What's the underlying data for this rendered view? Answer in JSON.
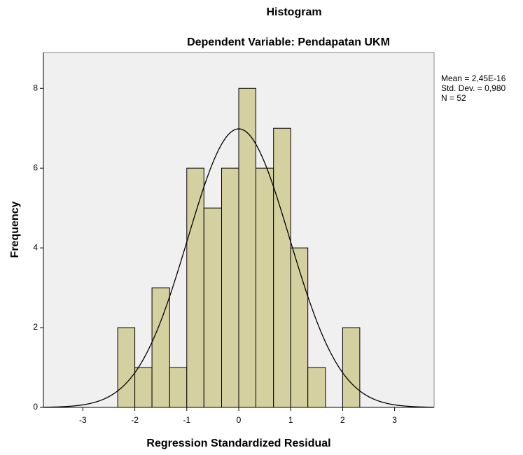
{
  "chart_data": {
    "type": "histogram",
    "title": "Histogram",
    "subtitle": "Dependent Variable: Pendapatan UKM",
    "x_label": "Regression Standardized Residual",
    "y_label": "Frequency",
    "bins": [
      -2.33,
      -2.0,
      -1.67,
      -1.33,
      -1.0,
      -0.67,
      -0.33,
      0,
      0.33,
      0.67,
      1.0,
      1.33,
      1.67,
      2.0,
      2.33
    ],
    "values": [
      2,
      1,
      3,
      1,
      6,
      5,
      6,
      8,
      6,
      7,
      4,
      1,
      0,
      2
    ],
    "color": "#d4d0a0",
    "xlim": [
      -3.76,
      3.76
    ],
    "xticks": [
      -3,
      -2,
      -1,
      0,
      1,
      2,
      3
    ],
    "ylim": [
      0,
      8.9
    ],
    "yticks": [
      0,
      2,
      4,
      6,
      8
    ],
    "stats": [
      {
        "value": 2.45e-16,
        "label": "Mean = 2,45E-16"
      },
      {
        "value": 0.98,
        "label": "Std. Dev. = 0,980"
      },
      {
        "value": 52,
        "label": "N = 52"
      }
    ]
  }
}
